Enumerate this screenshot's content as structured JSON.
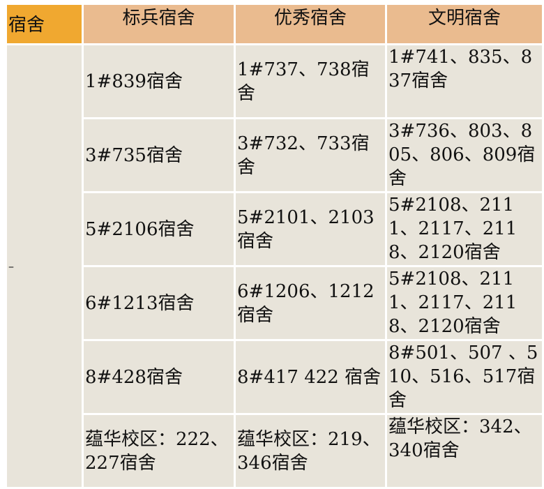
{
  "headers": [
    "宿舍",
    "标兵宿舍",
    "优秀宿舍",
    "文明宿舍"
  ],
  "side_label": "–",
  "rows": [
    [
      "1#839宿舍",
      "1#737、738宿舍",
      "1#741、835、837宿舍"
    ],
    [
      "3#735宿舍",
      "3#732、733宿舍",
      "3#736、803、805、806、809宿舍"
    ],
    [
      "5#2106宿舍",
      "5#2101、2103宿舍",
      "5#2108、2111、2117、2118、2120宿舍"
    ],
    [
      "6#1213宿舍",
      "6#1206、1212宿舍",
      "5#2108、2111、2117、2118、2120宿舍"
    ],
    [
      "8#428宿舍",
      "8#417 422 宿舍",
      "8#501、507 、510、516、517宿舍"
    ],
    [
      "蕴华校区：222、227宿舍",
      "蕴华校区：219、346宿舍",
      "蕴华校区：342、340宿舍"
    ]
  ],
  "colors": {
    "header_first": "#f0a830",
    "header": "#eabb8f",
    "cell": "#e8e4da"
  }
}
